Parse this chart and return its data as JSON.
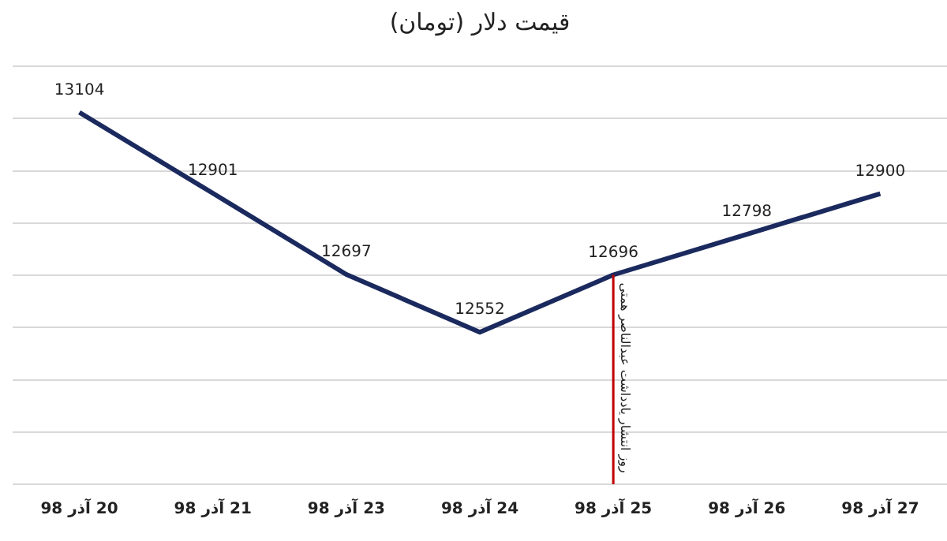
{
  "chart_data": {
    "type": "line",
    "title": "قیمت دلار (تومان)",
    "categories": [
      "20 آذر 98",
      "21 آذر 98",
      "23 آذر 98",
      "24 آذر 98",
      "25 آذر 98",
      "26 آذر 98",
      "27 آذر 98"
    ],
    "series": [
      {
        "color": "#1b2a5e",
        "values": [
          13104,
          12901,
          12697,
          12552,
          12696,
          12798,
          12900
        ]
      }
    ],
    "ylim": [
      12170,
      13220
    ],
    "yticks": [
      {
        "value": 12170,
        "label": null
      },
      {
        "value": 12301.25,
        "label": null
      },
      {
        "value": 12432.5,
        "label": null
      },
      {
        "value": 12563.75,
        "label": null
      },
      {
        "value": 12695,
        "label": null
      },
      {
        "value": 12826.25,
        "label": null
      },
      {
        "value": 12957.5,
        "label": null
      },
      {
        "value": 13088.75,
        "label": null
      },
      {
        "value": 13220,
        "label": null
      }
    ],
    "tick_labels": "x",
    "grid": "y",
    "legend": false,
    "marker": "none",
    "line_style": "solid",
    "data_labels": true,
    "ref_lines": [
      {
        "axis": "x",
        "value": "25 آذر 98",
        "label": "روز انتشار یادداشت عبدالناصر همتی",
        "color": "#c00000"
      }
    ]
  }
}
